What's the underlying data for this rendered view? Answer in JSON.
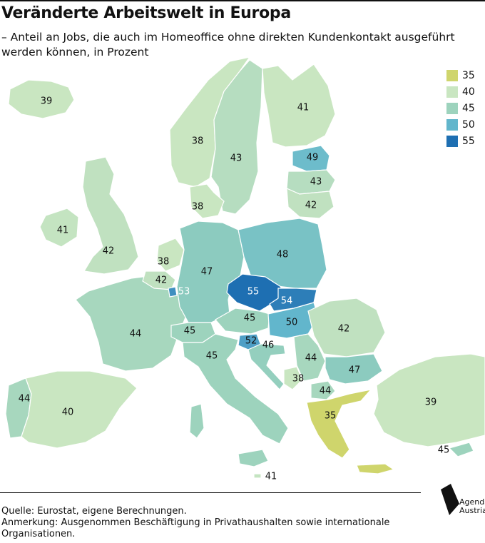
{
  "title": "Veränderte Arbeitswelt in Europa",
  "subtitle": "– Anteil an Jobs, die auch im Homeoffice ohne direkten Kundenkontakt ausgeführt werden können, in Prozent",
  "legend": [
    {
      "label": "35",
      "color": "#cfd56c"
    },
    {
      "label": "40",
      "color": "#c9e6c1"
    },
    {
      "label": "45",
      "color": "#9dd3bd"
    },
    {
      "label": "50",
      "color": "#62b6cc"
    },
    {
      "label": "55",
      "color": "#1e6fb2"
    }
  ],
  "regions": [
    {
      "name": "Iceland",
      "value": "39",
      "color": "#c9e6c1"
    },
    {
      "name": "Norway",
      "value": "38",
      "color": "#c9e6c1"
    },
    {
      "name": "Sweden",
      "value": "43",
      "color": "#b6ddc0"
    },
    {
      "name": "Finland",
      "value": "41",
      "color": "#c9e6c1"
    },
    {
      "name": "Estonia",
      "value": "49",
      "color": "#6dbccb"
    },
    {
      "name": "Latvia",
      "value": "43",
      "color": "#b6ddc0"
    },
    {
      "name": "Lithuania",
      "value": "42",
      "color": "#c0e1c0"
    },
    {
      "name": "Denmark",
      "value": "38",
      "color": "#c9e6c1"
    },
    {
      "name": "Ireland",
      "value": "41",
      "color": "#c4e4c1"
    },
    {
      "name": "United Kingdom",
      "value": "42",
      "color": "#c0e1c0"
    },
    {
      "name": "Netherlands",
      "value": "38",
      "color": "#c9e6c1"
    },
    {
      "name": "Belgium",
      "value": "42",
      "color": "#c0e1c0"
    },
    {
      "name": "Luxembourg",
      "value": "53",
      "color": "#3f8fc0"
    },
    {
      "name": "Germany",
      "value": "47",
      "color": "#8ccbbf"
    },
    {
      "name": "Poland",
      "value": "48",
      "color": "#79c2c5"
    },
    {
      "name": "Czechia",
      "value": "55",
      "color": "#1e6fb2"
    },
    {
      "name": "Slovakia",
      "value": "54",
      "color": "#2d7eb8"
    },
    {
      "name": "Austria",
      "value": "45",
      "color": "#9dd3bd"
    },
    {
      "name": "Hungary",
      "value": "50",
      "color": "#62b6cc"
    },
    {
      "name": "Switzerland",
      "value": "45",
      "color": "#9dd3bd"
    },
    {
      "name": "France",
      "value": "44",
      "color": "#a7d7be"
    },
    {
      "name": "Italy",
      "value": "45",
      "color": "#9dd3bd"
    },
    {
      "name": "Slovenia",
      "value": "52",
      "color": "#4f9fc6"
    },
    {
      "name": "Croatia",
      "value": "46",
      "color": "#94cfbe"
    },
    {
      "name": "Serbia",
      "value": "44",
      "color": "#a7d7be"
    },
    {
      "name": "Montenegro",
      "value": "38",
      "color": "#c9e6c1"
    },
    {
      "name": "North Macedonia",
      "value": "44",
      "color": "#a7d7be"
    },
    {
      "name": "Romania",
      "value": "42",
      "color": "#c0e1c0"
    },
    {
      "name": "Bulgaria",
      "value": "47",
      "color": "#8ccbbf"
    },
    {
      "name": "Greece",
      "value": "35",
      "color": "#cfd56c"
    },
    {
      "name": "Turkey",
      "value": "39",
      "color": "#c9e6c1"
    },
    {
      "name": "Cyprus",
      "value": "45",
      "color": "#9dd3bd"
    },
    {
      "name": "Malta",
      "value": "41",
      "color": "#c4e4c1"
    },
    {
      "name": "Portugal",
      "value": "44",
      "color": "#a7d7be"
    },
    {
      "name": "Spain",
      "value": "40",
      "color": "#c9e6c1"
    }
  ],
  "source": "Quelle: Eurostat, eigene Berechnungen.",
  "note": "Anmerkung: Ausgenommen Beschäftigung in Privathaushalten sowie internationale Organisationen.",
  "logo": {
    "line1": "Agenda",
    "line2": "Austria"
  }
}
